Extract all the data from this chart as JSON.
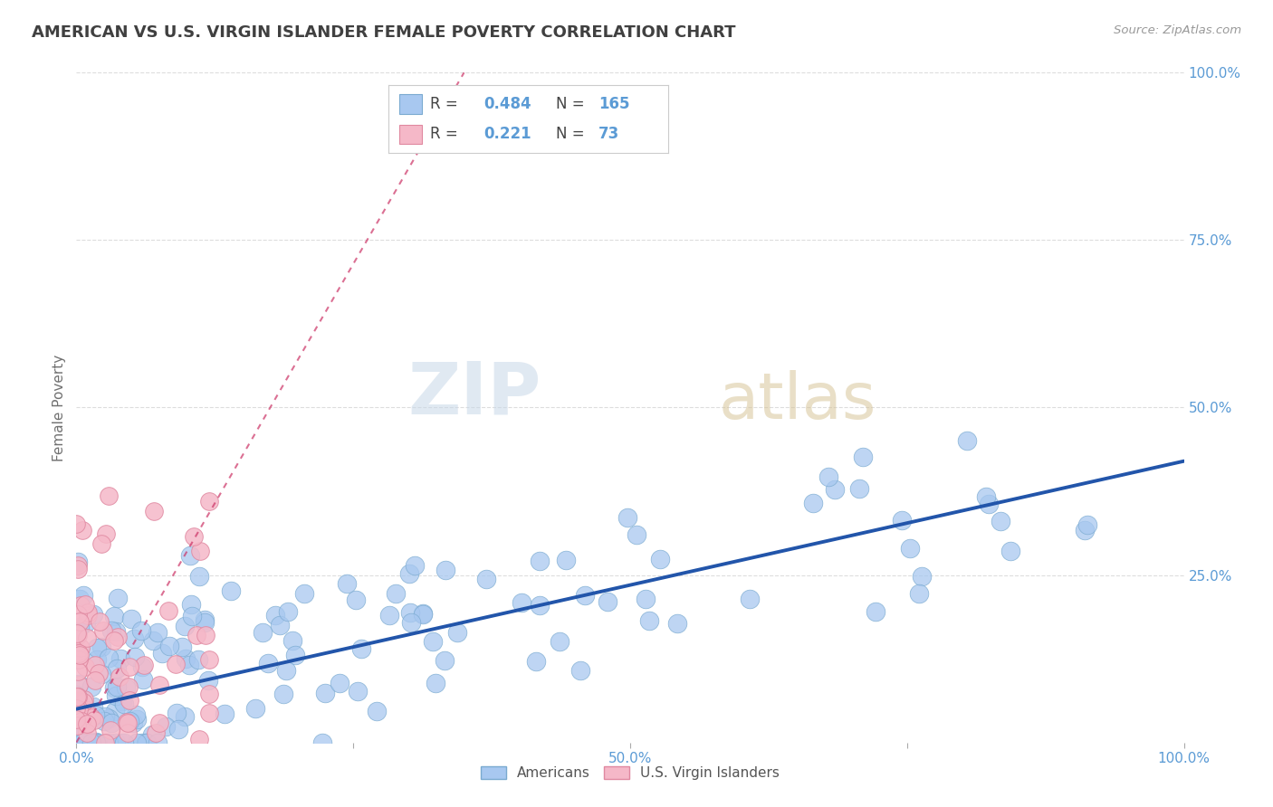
{
  "title": "AMERICAN VS U.S. VIRGIN ISLANDER FEMALE POVERTY CORRELATION CHART",
  "source": "Source: ZipAtlas.com",
  "ylabel": "Female Poverty",
  "watermark_zip": "ZIP",
  "watermark_atlas": "atlas",
  "americans": {
    "R": 0.484,
    "N": 165,
    "marker_color": "#a8c8f0",
    "marker_edge": "#7aaad0",
    "line_color": "#2255aa"
  },
  "virgin_islanders": {
    "R": 0.221,
    "N": 73,
    "marker_color": "#f5b8c8",
    "marker_edge": "#e088a0",
    "line_color": "#cc3366"
  },
  "xlim": [
    0.0,
    1.0
  ],
  "ylim": [
    0.0,
    1.0
  ],
  "xticks": [
    0.0,
    0.25,
    0.5,
    0.75,
    1.0
  ],
  "yticks": [
    0.25,
    0.5,
    0.75,
    1.0
  ],
  "xticklabels": [
    "0.0%",
    "",
    "50.0%",
    "",
    "100.0%"
  ],
  "yticklabels": [
    "25.0%",
    "50.0%",
    "75.0%",
    "100.0%"
  ],
  "grid_color": "#dddddd",
  "background_color": "#ffffff",
  "title_color": "#404040",
  "tick_color": "#5b9bd5",
  "legend_label_color": "#5b9bd5"
}
